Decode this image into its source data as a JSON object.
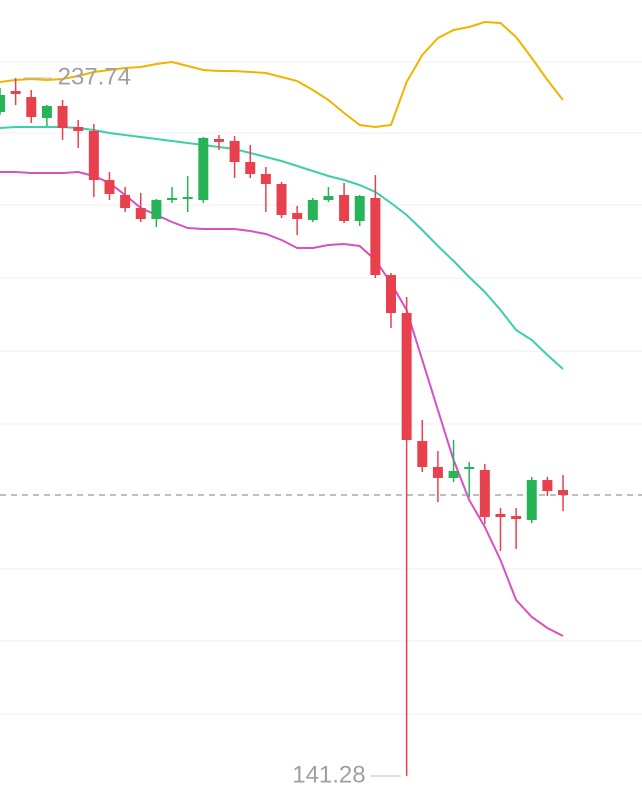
{
  "chart_data": {
    "type": "candlestick",
    "up_color": "#27b457",
    "down_color": "#e8414d",
    "ylim": [
      138.1,
      248.52
    ],
    "open": [
      233.04,
      235.94,
      235.11,
      232.21,
      233.87,
      230.97,
      230.42,
      223.64,
      221.57,
      219.77,
      218.25,
      220.88,
      221.02,
      220.88,
      229.31,
      229.03,
      226.13,
      224.47,
      223.09,
      219.08,
      218.12,
      220.88,
      221.57,
      217.98,
      221.16,
      210.51,
      205.26,
      187.57,
      183.98,
      182.46,
      183.7,
      183.57,
      177.49,
      177.21,
      176.66,
      182.18,
      180.8
    ],
    "high": [
      236.36,
      237.74,
      236.08,
      234.01,
      234.7,
      231.94,
      231.38,
      224.75,
      222.68,
      221.85,
      221.02,
      222.68,
      224.2,
      229.59,
      229.86,
      229.72,
      228.48,
      225.44,
      223.37,
      220.05,
      221.16,
      222.68,
      223.23,
      221.57,
      224.33,
      210.79,
      207.47,
      190.48,
      186.19,
      187.71,
      184.67,
      184.4,
      178.31,
      178.31,
      182.6,
      182.6,
      182.87
    ],
    "low": [
      232.63,
      234.01,
      231.52,
      231.11,
      229.17,
      228.07,
      221.29,
      220.88,
      219.22,
      217.84,
      217.15,
      220.47,
      219.22,
      220.47,
      227.79,
      223.92,
      223.92,
      219.22,
      218.39,
      216.04,
      217.84,
      220.6,
      217.7,
      217.29,
      210.1,
      203.19,
      141.28,
      183.29,
      179.14,
      181.91,
      179.83,
      176.1,
      172.37,
      172.65,
      176.24,
      179.97,
      177.9
    ],
    "close": [
      235.39,
      235.53,
      232.35,
      233.87,
      230.83,
      230.42,
      223.64,
      221.71,
      219.77,
      218.25,
      220.88,
      221.16,
      221.29,
      229.45,
      228.9,
      226.13,
      224.47,
      223.09,
      218.81,
      218.25,
      220.88,
      221.43,
      217.98,
      221.43,
      210.51,
      205.26,
      187.71,
      183.98,
      182.46,
      183.43,
      183.98,
      177.07,
      177.07,
      176.79,
      182.18,
      180.66,
      180.11
    ],
    "series": [
      {
        "color": "#f0b400",
        "values": [
          237.19,
          237.46,
          237.6,
          237.46,
          237.6,
          238.02,
          238.57,
          238.85,
          239.12,
          239.26,
          239.68,
          239.95,
          239.4,
          238.85,
          238.71,
          238.71,
          238.57,
          238.43,
          237.88,
          237.33,
          236.08,
          234.7,
          232.9,
          231.24,
          230.97,
          231.24,
          237.19,
          240.92,
          243.27,
          244.37,
          244.79,
          245.48,
          245.34,
          243.41,
          240.5,
          237.46,
          234.7
        ]
      },
      {
        "color": "#3ccfa8",
        "values": [
          230.83,
          230.97,
          230.97,
          230.97,
          230.97,
          230.83,
          230.55,
          230.14,
          229.86,
          229.59,
          229.31,
          229.03,
          228.76,
          228.48,
          228.2,
          227.93,
          227.38,
          226.82,
          226.27,
          225.58,
          224.89,
          224.2,
          223.64,
          222.95,
          221.99,
          220.47,
          218.81,
          216.73,
          214.52,
          212.45,
          210.24,
          208.17,
          205.68,
          202.91,
          201.53,
          199.46,
          197.52
        ]
      },
      {
        "color": "#d94fc4",
        "values": [
          224.75,
          224.75,
          224.61,
          224.61,
          224.61,
          224.75,
          224.2,
          223.23,
          221.57,
          219.77,
          218.81,
          217.84,
          217.01,
          216.87,
          216.87,
          216.87,
          216.6,
          216.18,
          215.35,
          214.25,
          214.25,
          214.66,
          214.8,
          214.52,
          212.59,
          209.41,
          205.68,
          198.77,
          191.86,
          184.95,
          179.42,
          175.69,
          171.13,
          165.6,
          163.25,
          161.73,
          160.62
        ]
      }
    ]
  }
}
